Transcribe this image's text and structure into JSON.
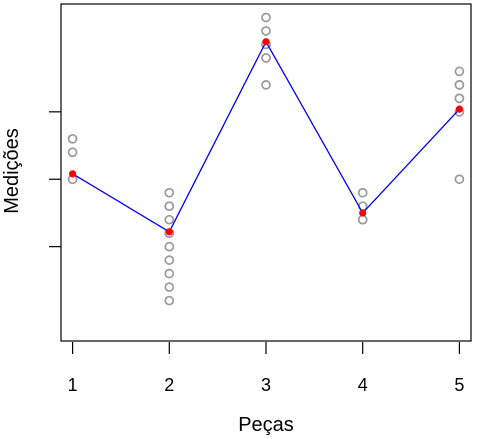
{
  "chart_data": {
    "type": "scatter",
    "title": "",
    "xlabel": "Peças",
    "ylabel": "Medições",
    "categories": [
      "1",
      "2",
      "3",
      "4",
      "5"
    ],
    "x": [
      1,
      2,
      3,
      4,
      5
    ],
    "xlim": [
      0.88,
      5.12
    ],
    "ylim": [
      -6.0,
      6.5
    ],
    "y_tick_values": [
      -2.5,
      0,
      2.5
    ],
    "y_tick_labels_shown": false,
    "grid": false,
    "legend": "none",
    "series": [
      {
        "type": "scatter",
        "marker": "open-circle",
        "points": [
          [
            1,
            1.5
          ],
          [
            1,
            1.0
          ],
          [
            1,
            0.0
          ],
          [
            1,
            0.0
          ],
          [
            2,
            -0.5
          ],
          [
            2,
            -1.0
          ],
          [
            2,
            -1.0
          ],
          [
            2,
            -1.5
          ],
          [
            2,
            -2.0
          ],
          [
            2,
            -2.0
          ],
          [
            2,
            -2.5
          ],
          [
            2,
            -3.0
          ],
          [
            2,
            -3.5
          ],
          [
            2,
            -4.0
          ],
          [
            2,
            -4.5
          ],
          [
            3,
            6.0
          ],
          [
            3,
            5.5
          ],
          [
            3,
            5.0
          ],
          [
            3,
            4.5
          ],
          [
            3,
            4.5
          ],
          [
            3,
            3.5
          ],
          [
            4,
            -0.5
          ],
          [
            4,
            -1.0
          ],
          [
            4,
            -1.5
          ],
          [
            4,
            -1.5
          ],
          [
            5,
            4.0
          ],
          [
            5,
            3.5
          ],
          [
            5,
            3.5
          ],
          [
            5,
            3.0
          ],
          [
            5,
            3.0
          ],
          [
            5,
            2.5
          ],
          [
            5,
            0.0
          ]
        ]
      },
      {
        "type": "line",
        "marker": "filled-circle",
        "points": [
          [
            1,
            0.2
          ],
          [
            2,
            -1.95
          ],
          [
            3,
            5.1
          ],
          [
            4,
            -1.25
          ],
          [
            5,
            2.6
          ]
        ]
      }
    ],
    "colors": {
      "background": "#ffffff",
      "frame": "#000000",
      "points": "#9a9a9a",
      "line": "#0000ff",
      "means": "#ff0000",
      "text": "#000000"
    }
  }
}
